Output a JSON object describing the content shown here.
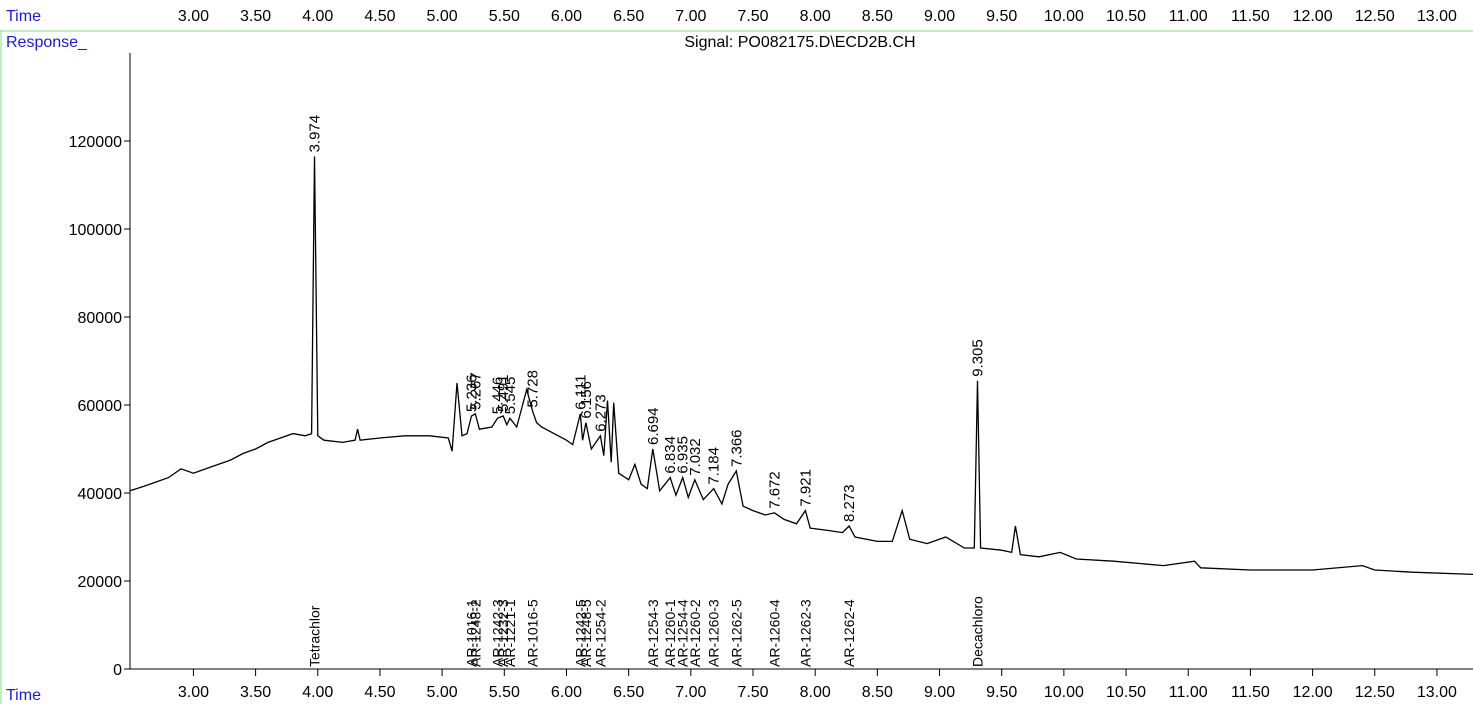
{
  "chart_data": {
    "type": "line",
    "title": "Signal: PO082175.D\\ECD2B.CH",
    "y_label": "Response_",
    "x_label": "Time",
    "color": "#000000",
    "peak_label_color": "#1a1adc",
    "xlim": [
      2.49,
      13.29
    ],
    "ylim": [
      0,
      140000
    ],
    "xticks": [
      {
        "value": 3,
        "label": "3.00"
      },
      {
        "value": 3.5,
        "label": "3.50"
      },
      {
        "value": 4,
        "label": "4.00"
      },
      {
        "value": 4.5,
        "label": "4.50"
      },
      {
        "value": 5,
        "label": "5.00"
      },
      {
        "value": 5.5,
        "label": "5.50"
      },
      {
        "value": 6,
        "label": "6.00"
      },
      {
        "value": 6.5,
        "label": "6.50"
      },
      {
        "value": 7,
        "label": "7.00"
      },
      {
        "value": 7.5,
        "label": "7.50"
      },
      {
        "value": 8,
        "label": "8.00"
      },
      {
        "value": 8.5,
        "label": "8.50"
      },
      {
        "value": 9,
        "label": "9.00"
      },
      {
        "value": 9.5,
        "label": "9.50"
      },
      {
        "value": 10,
        "label": "10.00"
      },
      {
        "value": 10.5,
        "label": "10.50"
      },
      {
        "value": 11,
        "label": "11.00"
      },
      {
        "value": 11.5,
        "label": "11.50"
      },
      {
        "value": 12,
        "label": "12.00"
      },
      {
        "value": 12.5,
        "label": "12.50"
      },
      {
        "value": 13,
        "label": "13.00"
      }
    ],
    "yticks": [
      0,
      20000,
      40000,
      60000,
      80000,
      100000,
      120000
    ],
    "x": [
      2.49,
      2.6,
      2.7,
      2.8,
      2.9,
      3.0,
      3.1,
      3.2,
      3.3,
      3.4,
      3.5,
      3.6,
      3.7,
      3.8,
      3.9,
      3.95,
      3.974,
      4.0,
      4.05,
      4.2,
      4.3,
      4.32,
      4.34,
      4.5,
      4.7,
      4.9,
      5.05,
      5.08,
      5.12,
      5.16,
      5.2,
      5.236,
      5.267,
      5.3,
      5.4,
      5.446,
      5.491,
      5.52,
      5.545,
      5.6,
      5.68,
      5.728,
      5.76,
      5.8,
      5.9,
      6.0,
      6.05,
      6.111,
      6.13,
      6.156,
      6.2,
      6.273,
      6.3,
      6.33,
      6.36,
      6.38,
      6.42,
      6.5,
      6.55,
      6.6,
      6.65,
      6.694,
      6.75,
      6.834,
      6.88,
      6.935,
      6.98,
      7.032,
      7.1,
      7.184,
      7.25,
      7.3,
      7.366,
      7.42,
      7.5,
      7.6,
      7.672,
      7.75,
      7.85,
      7.921,
      7.96,
      8.1,
      8.22,
      8.273,
      8.32,
      8.5,
      8.62,
      8.7,
      8.76,
      8.9,
      9.05,
      9.2,
      9.28,
      9.305,
      9.33,
      9.5,
      9.58,
      9.61,
      9.65,
      9.8,
      9.97,
      10.1,
      10.4,
      10.8,
      11.05,
      11.1,
      11.5,
      12.0,
      12.4,
      12.5,
      12.8,
      13.29
    ],
    "values": [
      40500,
      41500,
      42500,
      43500,
      45500,
      44500,
      45500,
      46500,
      47500,
      49000,
      50000,
      51500,
      52500,
      53500,
      53000,
      53500,
      116500,
      53000,
      52000,
      51500,
      52000,
      54500,
      52000,
      52500,
      53000,
      53000,
      52500,
      49500,
      65000,
      53000,
      53500,
      57500,
      58000,
      54500,
      55000,
      57000,
      57500,
      55500,
      57000,
      55000,
      63500,
      58500,
      56000,
      55000,
      53500,
      52000,
      51000,
      58000,
      52000,
      56000,
      50000,
      53000,
      48500,
      61000,
      47000,
      60500,
      44500,
      43000,
      46500,
      42000,
      41000,
      50000,
      40500,
      43500,
      39500,
      43500,
      39000,
      43000,
      38500,
      41000,
      37500,
      42000,
      45000,
      37000,
      36000,
      35000,
      35500,
      34000,
      33000,
      36000,
      32000,
      31500,
      31000,
      32500,
      30000,
      29000,
      29000,
      36000,
      29500,
      28500,
      30000,
      27500,
      27500,
      65500,
      27500,
      27000,
      26500,
      32500,
      26000,
      25500,
      26500,
      25000,
      24500,
      23500,
      24500,
      23000,
      22500,
      22500,
      23500,
      22500,
      22000,
      21500
    ],
    "peaks": [
      {
        "rt": 3.974,
        "height": 116500
      },
      {
        "rt": 5.236,
        "height": 57500
      },
      {
        "rt": 5.267,
        "height": 58000
      },
      {
        "rt": 5.446,
        "height": 57000
      },
      {
        "rt": 5.491,
        "height": 57500
      },
      {
        "rt": 5.545,
        "height": 57000
      },
      {
        "rt": 5.728,
        "height": 58500
      },
      {
        "rt": 6.111,
        "height": 58000
      },
      {
        "rt": 6.156,
        "height": 56000
      },
      {
        "rt": 6.273,
        "height": 53000
      },
      {
        "rt": 6.694,
        "height": 50000
      },
      {
        "rt": 6.834,
        "height": 43500
      },
      {
        "rt": 6.935,
        "height": 43500
      },
      {
        "rt": 7.032,
        "height": 43000
      },
      {
        "rt": 7.184,
        "height": 41000
      },
      {
        "rt": 7.366,
        "height": 45000
      },
      {
        "rt": 7.672,
        "height": 35500
      },
      {
        "rt": 7.921,
        "height": 36000
      },
      {
        "rt": 8.273,
        "height": 32500
      },
      {
        "rt": 9.305,
        "height": 65500
      }
    ],
    "compounds": [
      {
        "name": "Tetrachlor",
        "rt": 3.974
      },
      {
        "name": "AR-1016-1",
        "rt": 5.236
      },
      {
        "name": "AR-1248-2",
        "rt": 5.267
      },
      {
        "name": "AR-1242-3",
        "rt": 5.446
      },
      {
        "name": "AR-1232-3",
        "rt": 5.491
      },
      {
        "name": "AR-1221-1",
        "rt": 5.545
      },
      {
        "name": "AR-1016-5",
        "rt": 5.728
      },
      {
        "name": "AR-1242-5",
        "rt": 6.111
      },
      {
        "name": "AR-1248-5",
        "rt": 6.156
      },
      {
        "name": "AR-1254-2",
        "rt": 6.273
      },
      {
        "name": "AR-1254-3",
        "rt": 6.694
      },
      {
        "name": "AR-1260-1",
        "rt": 6.834
      },
      {
        "name": "AR-1254-4",
        "rt": 6.935
      },
      {
        "name": "AR-1260-2",
        "rt": 7.032
      },
      {
        "name": "AR-1260-3",
        "rt": 7.184
      },
      {
        "name": "AR-1262-5",
        "rt": 7.366
      },
      {
        "name": "AR-1260-4",
        "rt": 7.672
      },
      {
        "name": "AR-1262-3",
        "rt": 7.921
      },
      {
        "name": "AR-1262-4",
        "rt": 8.273
      },
      {
        "name": "Decachloro",
        "rt": 9.305
      }
    ]
  }
}
